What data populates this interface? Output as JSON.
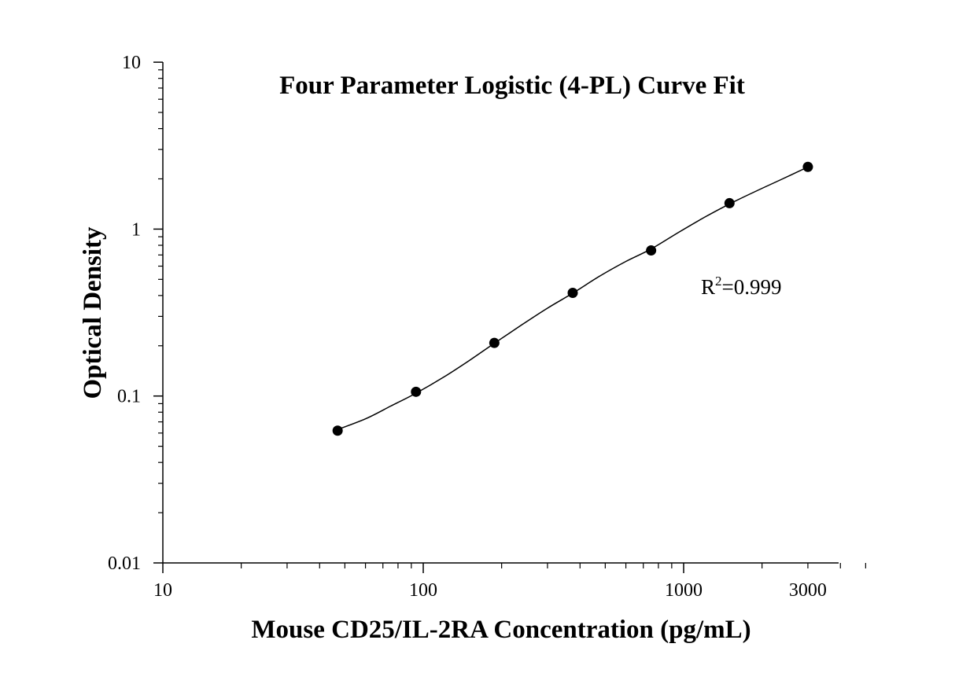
{
  "chart_data": {
    "type": "scatter",
    "title": "Four Parameter Logistic (4-PL) Curve Fit",
    "xlabel": "Mouse CD25/IL-2RA Concentration (pg/mL)",
    "ylabel": "Optical Density",
    "x_scale": "log",
    "y_scale": "log",
    "xlim": [
      10,
      6000
    ],
    "ylim": [
      0.01,
      10
    ],
    "x_ticks": [
      {
        "value": 10,
        "label": "10"
      },
      {
        "value": 100,
        "label": "100"
      },
      {
        "value": 1000,
        "label": "1000"
      },
      {
        "value": 3000,
        "label": "3000"
      }
    ],
    "y_ticks": [
      {
        "value": 0.01,
        "label": "0.01"
      },
      {
        "value": 0.1,
        "label": "0.1"
      },
      {
        "value": 1,
        "label": "1"
      },
      {
        "value": 10,
        "label": "10"
      }
    ],
    "grid": false,
    "series": [
      {
        "marker": "circle",
        "color": "#000000",
        "x": [
          46.9,
          93.8,
          187.5,
          375,
          750,
          1500,
          3000
        ],
        "y": [
          0.062,
          0.106,
          0.208,
          0.415,
          0.745,
          1.43,
          2.36
        ]
      }
    ],
    "fit_curve": {
      "model": "4-PL",
      "color": "#000000",
      "x": [
        46.9,
        60,
        75,
        93.8,
        120,
        150,
        187.5,
        240,
        300,
        375,
        480,
        600,
        750,
        950,
        1200,
        1500,
        1900,
        2400,
        3000
      ],
      "y": [
        0.063,
        0.073,
        0.087,
        0.104,
        0.13,
        0.163,
        0.207,
        0.268,
        0.336,
        0.413,
        0.527,
        0.64,
        0.76,
        0.95,
        1.175,
        1.415,
        1.69,
        2.0,
        2.355
      ]
    },
    "annotations": [
      {
        "base": "R",
        "sup": "2",
        "text": "=0.999"
      }
    ]
  }
}
